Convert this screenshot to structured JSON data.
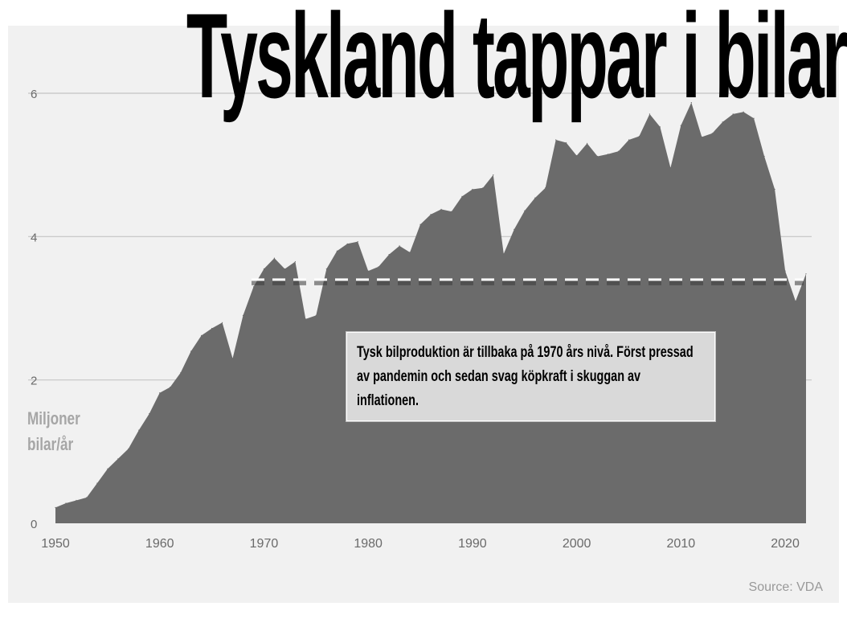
{
  "title": "Tyskland tappar i bilar",
  "unit_label": [
    "Miljoner",
    "bilar/år"
  ],
  "annotation": "Tysk bilproduktion är tillbaka på 1970 års nivå. Först pressad av pandemin och sedan svag köpkraft i skuggan av inflationen.",
  "source": "Source: VDA",
  "chart_data": {
    "type": "area",
    "title": "Tyskland tappar i bilar",
    "xlabel": "",
    "ylabel": "Miljoner bilar/år",
    "xlim": [
      1950,
      2022
    ],
    "ylim": [
      0,
      6
    ],
    "x_ticks": [
      1950,
      1960,
      1970,
      1980,
      1990,
      2000,
      2010,
      2020
    ],
    "y_ticks": [
      0,
      2,
      4,
      6
    ],
    "grid": "horizontal",
    "fill_color": "#6b6b6b",
    "reference_line": {
      "value": 3.4,
      "style": "dashed",
      "color": "#ffffff"
    },
    "x": [
      1950,
      1951,
      1952,
      1953,
      1954,
      1955,
      1956,
      1957,
      1958,
      1959,
      1960,
      1961,
      1962,
      1963,
      1964,
      1965,
      1966,
      1967,
      1968,
      1969,
      1970,
      1971,
      1972,
      1973,
      1974,
      1975,
      1976,
      1977,
      1978,
      1979,
      1980,
      1981,
      1982,
      1983,
      1984,
      1985,
      1986,
      1987,
      1988,
      1989,
      1990,
      1991,
      1992,
      1993,
      1994,
      1995,
      1996,
      1997,
      1998,
      1999,
      2000,
      2001,
      2002,
      2003,
      2004,
      2005,
      2006,
      2007,
      2008,
      2009,
      2010,
      2011,
      2012,
      2013,
      2014,
      2015,
      2016,
      2017,
      2018,
      2019,
      2020,
      2021,
      2022
    ],
    "values": [
      0.22,
      0.28,
      0.32,
      0.36,
      0.56,
      0.76,
      0.9,
      1.04,
      1.3,
      1.53,
      1.82,
      1.9,
      2.1,
      2.4,
      2.62,
      2.72,
      2.8,
      2.3,
      2.9,
      3.3,
      3.55,
      3.7,
      3.55,
      3.65,
      2.85,
      2.9,
      3.55,
      3.8,
      3.9,
      3.93,
      3.52,
      3.58,
      3.75,
      3.87,
      3.78,
      4.17,
      4.31,
      4.38,
      4.35,
      4.56,
      4.66,
      4.68,
      4.86,
      3.76,
      4.1,
      4.36,
      4.54,
      4.68,
      5.35,
      5.31,
      5.13,
      5.3,
      5.12,
      5.15,
      5.19,
      5.35,
      5.4,
      5.71,
      5.53,
      4.96,
      5.55,
      5.87,
      5.39,
      5.44,
      5.6,
      5.71,
      5.74,
      5.65,
      5.12,
      4.66,
      3.52,
      3.1,
      3.48
    ]
  },
  "colors": {
    "background": "#f1f1f1",
    "area": "#6b6b6b",
    "grid": "#c4c4c4",
    "tick_text": "#6a6a6a",
    "unit_label": "#a6a6a6",
    "annotation_box": "#d9d9d9"
  }
}
